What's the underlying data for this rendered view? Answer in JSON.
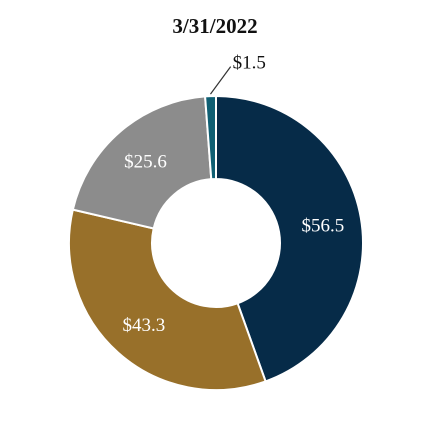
{
  "chart_data": {
    "type": "pie",
    "title": "3/31/2022",
    "donut": true,
    "value_unit": "$",
    "slices": [
      {
        "label": "$56.5",
        "value": 56.5,
        "color": "#062b48",
        "label_color": "#ffffff"
      },
      {
        "label": "$43.3",
        "value": 43.3,
        "color": "#98702a",
        "label_color": "#ffffff"
      },
      {
        "label": "$25.6",
        "value": 25.6,
        "color": "#8c8c8c",
        "label_color": "#ffffff"
      },
      {
        "label": "$1.5",
        "value": 1.5,
        "color": "#0f5f73",
        "label_color": "#111111"
      }
    ]
  }
}
